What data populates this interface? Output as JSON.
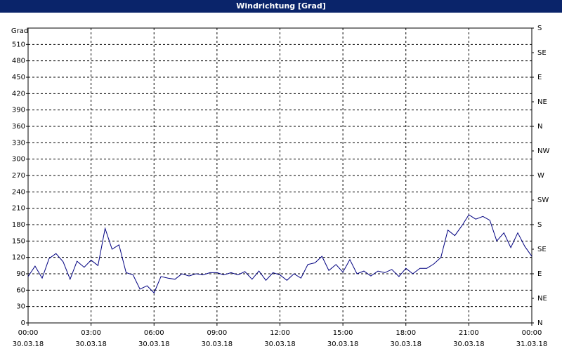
{
  "chart_data": {
    "type": "line",
    "title": "Windrichtung [Grad]",
    "y_label": "Grad",
    "color": "#000080",
    "grid": true,
    "xlim": [
      0,
      24
    ],
    "xticks": [
      {
        "value": 0,
        "label": "00:00"
      },
      {
        "value": 3,
        "label": "03:00"
      },
      {
        "value": 6,
        "label": "06:00"
      },
      {
        "value": 9,
        "label": "09:00"
      },
      {
        "value": 12,
        "label": "12:00"
      },
      {
        "value": 15,
        "label": "15:00"
      },
      {
        "value": 18,
        "label": "18:00"
      },
      {
        "value": 21,
        "label": "21:00"
      },
      {
        "value": 24,
        "label": "00:00"
      }
    ],
    "xtick_dates": [
      "30.03.18",
      "30.03.18",
      "30.03.18",
      "30.03.18",
      "30.03.18",
      "30.03.18",
      "30.03.18",
      "30.03.18",
      "31.03.18"
    ],
    "ylim": [
      0,
      540
    ],
    "yticks": [
      0,
      30,
      60,
      90,
      120,
      150,
      180,
      210,
      240,
      270,
      300,
      330,
      360,
      390,
      420,
      450,
      480,
      510
    ],
    "y2lim": [
      0,
      540
    ],
    "y2ticks": [
      {
        "value": 0,
        "label": "N"
      },
      {
        "value": 45,
        "label": "NE"
      },
      {
        "value": 90,
        "label": "E"
      },
      {
        "value": 135,
        "label": "SE"
      },
      {
        "value": 180,
        "label": "S"
      },
      {
        "value": 225,
        "label": "SW"
      },
      {
        "value": 270,
        "label": "W"
      },
      {
        "value": 315,
        "label": "NW"
      },
      {
        "value": 360,
        "label": "N"
      },
      {
        "value": 405,
        "label": "NE"
      },
      {
        "value": 450,
        "label": "E"
      },
      {
        "value": 495,
        "label": "SE"
      },
      {
        "value": 540,
        "label": "S"
      }
    ],
    "x": [
      0,
      0.33,
      0.67,
      1,
      1.33,
      1.67,
      2,
      2.33,
      2.67,
      3,
      3.33,
      3.67,
      4,
      4.33,
      4.67,
      5,
      5.33,
      5.67,
      6,
      6.33,
      6.67,
      7,
      7.33,
      7.67,
      8,
      8.33,
      8.67,
      9,
      9.33,
      9.67,
      10,
      10.33,
      10.67,
      11,
      11.33,
      11.67,
      12,
      12.33,
      12.67,
      13,
      13.33,
      13.67,
      14,
      14.33,
      14.67,
      15,
      15.33,
      15.67,
      16,
      16.33,
      16.67,
      17,
      17.33,
      17.67,
      18,
      18.33,
      18.67,
      19,
      19.33,
      19.67,
      20,
      20.33,
      20.67,
      21,
      21.33,
      21.67,
      22,
      22.33,
      22.67,
      23,
      23.33,
      23.67,
      24
    ],
    "values": [
      85,
      104,
      82,
      118,
      127,
      112,
      80,
      113,
      102,
      115,
      105,
      173,
      135,
      143,
      92,
      88,
      62,
      68,
      55,
      85,
      82,
      80,
      90,
      86,
      90,
      88,
      92,
      92,
      88,
      92,
      88,
      94,
      80,
      95,
      78,
      92,
      88,
      78,
      90,
      82,
      107,
      110,
      122,
      96,
      107,
      93,
      116,
      90,
      95,
      86,
      95,
      92,
      98,
      85,
      100,
      90,
      100,
      100,
      108,
      120,
      170,
      160,
      178,
      198,
      190,
      195,
      188,
      150,
      165,
      138,
      165,
      140,
      122
    ]
  }
}
